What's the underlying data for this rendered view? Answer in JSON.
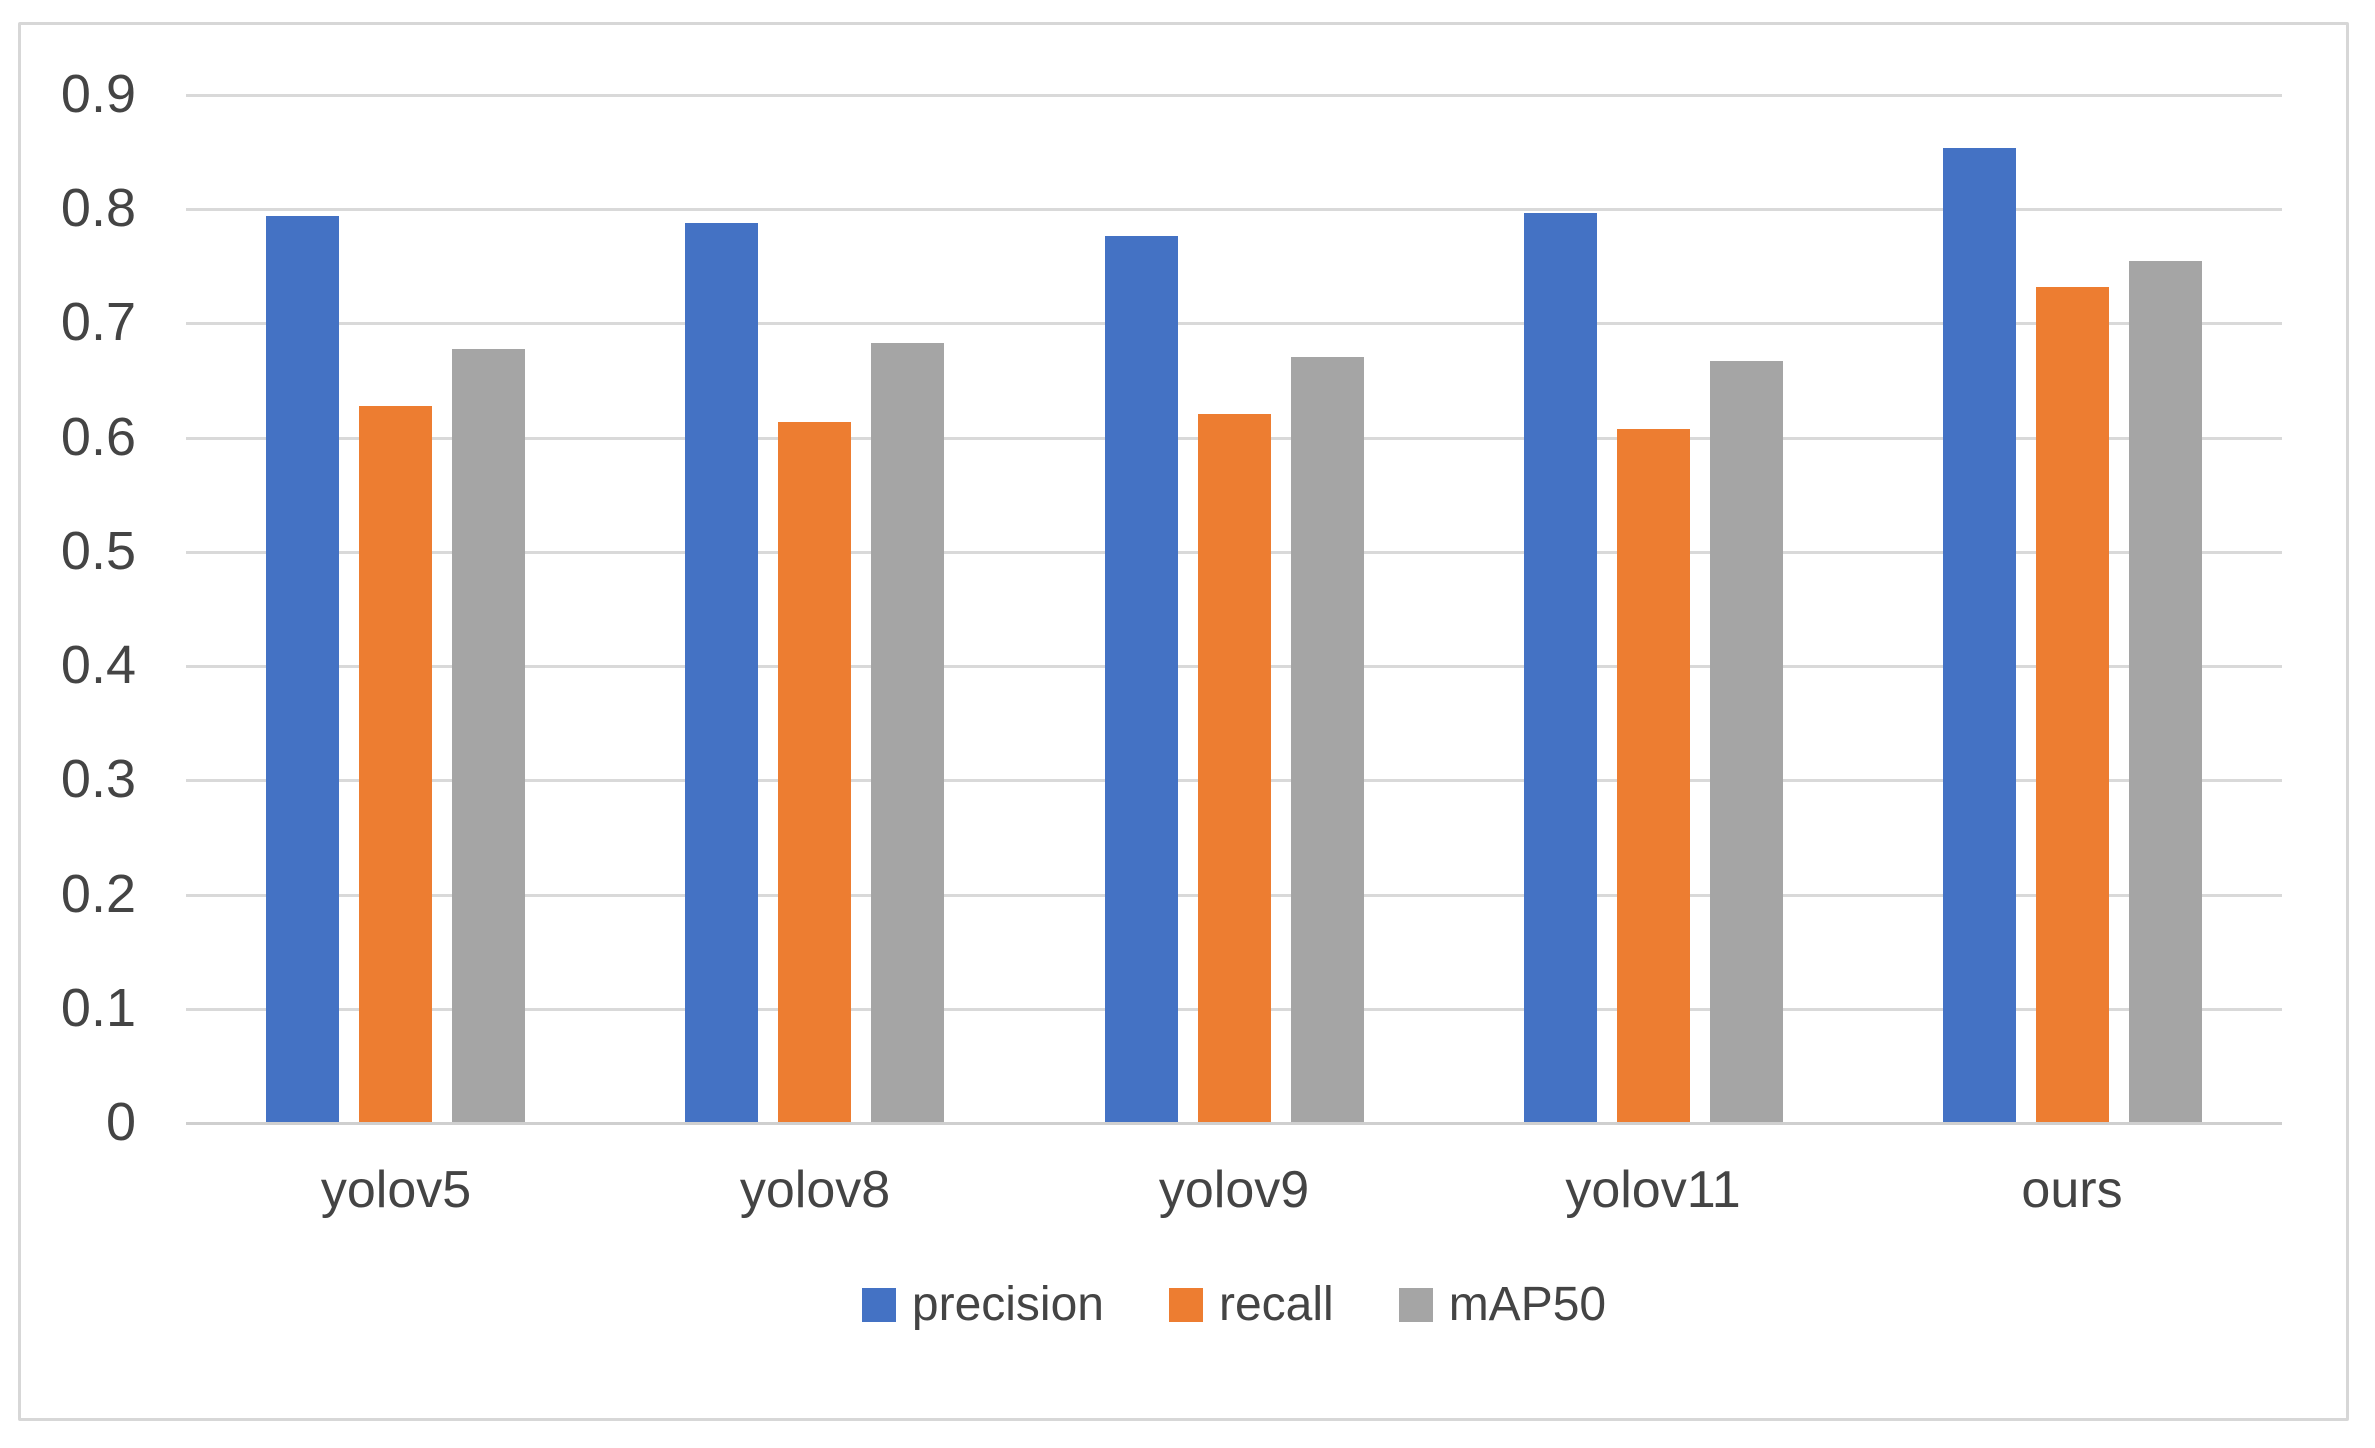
{
  "chart_data": {
    "type": "bar",
    "title": "",
    "xlabel": "",
    "ylabel": "",
    "categories": [
      "yolov5",
      "yolov8",
      "yolov9",
      "yolov11",
      "ours"
    ],
    "series": [
      {
        "name": "precision",
        "color": "#4472C4",
        "values": [
          0.793,
          0.787,
          0.776,
          0.796,
          0.853
        ]
      },
      {
        "name": "recall",
        "color": "#ED7D31",
        "values": [
          0.627,
          0.613,
          0.62,
          0.607,
          0.731
        ]
      },
      {
        "name": "mAP50",
        "color": "#A5A5A5",
        "values": [
          0.677,
          0.682,
          0.67,
          0.666,
          0.754
        ]
      }
    ],
    "ylim": [
      0,
      0.9
    ],
    "ytick_step": 0.1,
    "ytick_labels": [
      "0.9",
      "0.8",
      "0.7",
      "0.6",
      "0.5",
      "0.4",
      "0.3",
      "0.2",
      "0.1",
      "0"
    ],
    "grid": "horizontal",
    "legend_position": "bottom",
    "style": {
      "gridline_color": "#d9d9d9",
      "axis_line_color": "#cfcfcf",
      "text_color": "#444444",
      "frame_border_color": "#d7d7d7",
      "background": "#ffffff"
    }
  }
}
